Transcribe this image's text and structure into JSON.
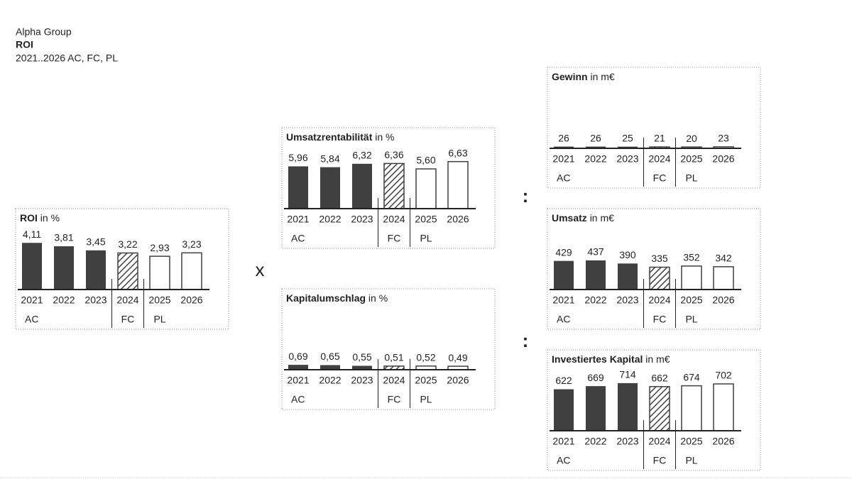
{
  "header": {
    "company": "Alpha Group",
    "title": "ROI",
    "subtitle": "2021..2026 AC, FC, PL"
  },
  "operators": [
    "x",
    ":",
    ":"
  ],
  "chart_data": [
    {
      "type": "bar",
      "title": "ROI",
      "unit": "in %",
      "color": "#404040",
      "categories": [
        "2021",
        "2022",
        "2023",
        "2024",
        "2025",
        "2026"
      ],
      "scenario": [
        "AC",
        "AC",
        "AC",
        "FC",
        "PL",
        "PL"
      ],
      "values": [
        4.11,
        3.81,
        3.45,
        3.22,
        2.93,
        3.23
      ],
      "value_labels": [
        "4,11",
        "3,81",
        "3,45",
        "3,22",
        "2,93",
        "3,23"
      ]
    },
    {
      "type": "bar",
      "title": "Umsatzrentabilität",
      "unit": "in %",
      "color": "#404040",
      "categories": [
        "2021",
        "2022",
        "2023",
        "2024",
        "2025",
        "2026"
      ],
      "scenario": [
        "AC",
        "AC",
        "AC",
        "FC",
        "PL",
        "PL"
      ],
      "values": [
        5.96,
        5.84,
        6.32,
        6.36,
        5.6,
        6.63
      ],
      "value_labels": [
        "5,96",
        "5,84",
        "6,32",
        "6,36",
        "5,60",
        "6,63"
      ]
    },
    {
      "type": "bar",
      "title": "Kapitalumschlag",
      "unit": "in %",
      "color": "#404040",
      "categories": [
        "2021",
        "2022",
        "2023",
        "2024",
        "2025",
        "2026"
      ],
      "scenario": [
        "AC",
        "AC",
        "AC",
        "FC",
        "PL",
        "PL"
      ],
      "values": [
        0.69,
        0.65,
        0.55,
        0.51,
        0.52,
        0.49
      ],
      "value_labels": [
        "0,69",
        "0,65",
        "0,55",
        "0,51",
        "0,52",
        "0,49"
      ]
    },
    {
      "type": "bar",
      "title": "Gewinn",
      "unit": "in m€",
      "color": "#404040",
      "categories": [
        "2021",
        "2022",
        "2023",
        "2024",
        "2025",
        "2026"
      ],
      "scenario": [
        "AC",
        "AC",
        "AC",
        "FC",
        "PL",
        "PL"
      ],
      "values": [
        26,
        26,
        25,
        21,
        20,
        23
      ]
    },
    {
      "type": "bar",
      "title": "Umsatz",
      "unit": "in m€",
      "color": "#404040",
      "categories": [
        "2021",
        "2022",
        "2023",
        "2024",
        "2025",
        "2026"
      ],
      "scenario": [
        "AC",
        "AC",
        "AC",
        "FC",
        "PL",
        "PL"
      ],
      "values": [
        429,
        437,
        390,
        335,
        352,
        342
      ]
    },
    {
      "type": "bar",
      "title": "Investiertes Kapital",
      "unit": "in m€",
      "color": "#404040",
      "categories": [
        "2021",
        "2022",
        "2023",
        "2024",
        "2025",
        "2026"
      ],
      "scenario": [
        "AC",
        "AC",
        "AC",
        "FC",
        "PL",
        "PL"
      ],
      "values": [
        622,
        669,
        714,
        662,
        674,
        702
      ]
    }
  ]
}
